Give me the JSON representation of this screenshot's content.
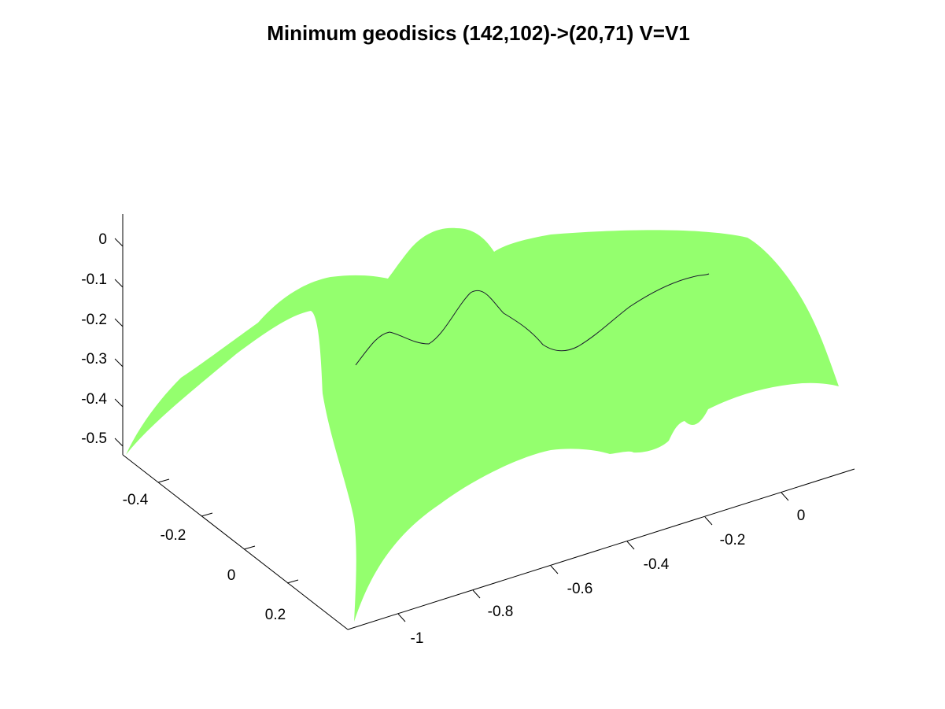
{
  "chart_data": {
    "type": "surface3d",
    "title": "Minimum geodisics (142,102)->(20,71) V=V1",
    "surface_color": "#94ff6e",
    "path_color": "#1a1a2e",
    "grid": false,
    "axes": {
      "z": {
        "ticks": [
          "0",
          "-0.1",
          "-0.2",
          "-0.3",
          "-0.4",
          "-0.5"
        ],
        "range": [
          -0.55,
          0.05
        ]
      },
      "y": {
        "ticks": [
          "-0.4",
          "-0.2",
          "0",
          "0.2"
        ],
        "range": [
          -0.5,
          0.3
        ]
      },
      "x": {
        "ticks": [
          "-1",
          "-0.8",
          "-0.6",
          "-0.4",
          "-0.2",
          "0"
        ],
        "range": [
          -1.1,
          0.15
        ]
      }
    },
    "geodesic": {
      "start": "(142,102)",
      "end": "(20,71)"
    }
  }
}
